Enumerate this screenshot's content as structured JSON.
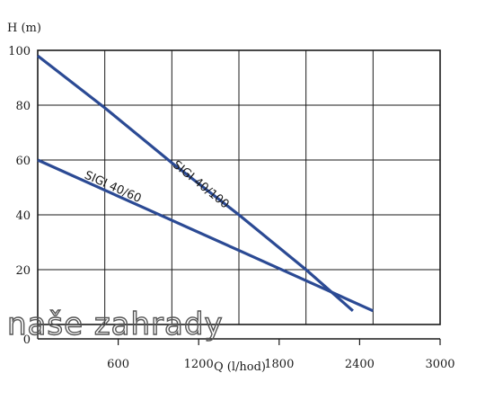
{
  "chart_data": {
    "type": "line",
    "xlabel": "Q (l/hod)",
    "ylabel": "H (m)",
    "xlim": [
      0,
      3000
    ],
    "ylim": [
      0,
      100
    ],
    "x_ticks": [
      "0",
      "600",
      "1200",
      "1800",
      "2400",
      "3000"
    ],
    "y_ticks": [
      "0",
      "20",
      "40",
      "60",
      "80",
      "100"
    ],
    "grid": true,
    "series": [
      {
        "name": "SIGI 40/100",
        "color": "#2b4a94",
        "x": [
          0,
          500,
          1000,
          1500,
          2000,
          2350
        ],
        "y": [
          98,
          79,
          59,
          40,
          20,
          5
        ],
        "label_at": {
          "x": 1200,
          "y": 50,
          "angle": "along-line"
        }
      },
      {
        "name": "SIGI 40/60",
        "color": "#2b4a94",
        "x": [
          0,
          500,
          1000,
          1500,
          2000,
          2500
        ],
        "y": [
          60,
          49,
          38,
          27,
          16,
          5
        ],
        "label_at": {
          "x": 550,
          "y": 49,
          "angle": "along-line"
        }
      }
    ]
  },
  "watermark": "naše zahrady"
}
